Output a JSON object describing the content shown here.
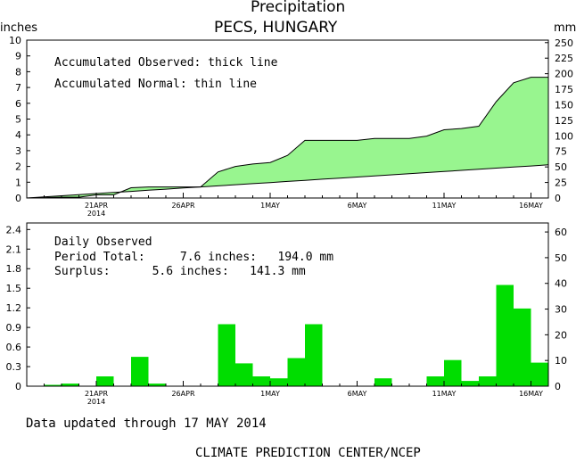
{
  "header": {
    "title": "Precipitation",
    "location": "PECS, HUNGARY",
    "left_unit": "inches",
    "right_unit": "mm"
  },
  "footer": {
    "updated": "Data updated through 17 MAY 2014",
    "credit": "CLIMATE PREDICTION CENTER/NCEP"
  },
  "chart_data": [
    {
      "type": "area",
      "annotations": [
        "Accumulated Observed: thick line",
        "Accumulated Normal: thin line"
      ],
      "x_ticks": [
        "21APR",
        "26APR",
        "1MAY",
        "6MAY",
        "11MAY",
        "16MAY"
      ],
      "x_tick_days": [
        4,
        9,
        14,
        19,
        24,
        29
      ],
      "year_label": "2014",
      "y_left_ticks": [
        "0",
        "1",
        "2",
        "3",
        "4",
        "5",
        "6",
        "7",
        "8",
        "9",
        "10"
      ],
      "y_right_ticks": [
        "0",
        "25",
        "50",
        "75",
        "100",
        "125",
        "150",
        "175",
        "200",
        "225",
        "250"
      ],
      "ylim_inches": [
        0,
        10
      ],
      "x_days": [
        0,
        1,
        2,
        3,
        4,
        5,
        6,
        7,
        8,
        9,
        10,
        11,
        12,
        13,
        14,
        15,
        16,
        17,
        18,
        19,
        20,
        21,
        22,
        23,
        24,
        25,
        26,
        27,
        28,
        29,
        30
      ],
      "series": [
        {
          "name": "Accumulated Observed",
          "values": [
            0.0,
            0.02,
            0.05,
            0.05,
            0.2,
            0.2,
            0.65,
            0.7,
            0.7,
            0.7,
            0.7,
            1.65,
            2.0,
            2.15,
            2.25,
            2.7,
            3.65,
            3.65,
            3.65,
            3.65,
            3.77,
            3.77,
            3.77,
            3.92,
            4.32,
            4.4,
            4.55,
            6.1,
            7.3,
            7.65,
            7.65
          ]
        },
        {
          "name": "Accumulated Normal",
          "values": [
            0.0,
            0.07,
            0.14,
            0.21,
            0.28,
            0.35,
            0.42,
            0.49,
            0.56,
            0.63,
            0.7,
            0.77,
            0.84,
            0.91,
            0.98,
            1.05,
            1.12,
            1.19,
            1.26,
            1.33,
            1.4,
            1.47,
            1.54,
            1.61,
            1.68,
            1.75,
            1.82,
            1.89,
            1.96,
            2.03,
            2.1
          ]
        }
      ]
    },
    {
      "type": "bar",
      "annotations": [
        "Daily Observed",
        "Period Total:     7.6 inches:   194.0 mm",
        "Surplus:      5.6 inches:   141.3 mm"
      ],
      "x_ticks": [
        "21APR",
        "26APR",
        "1MAY",
        "6MAY",
        "11MAY",
        "16MAY"
      ],
      "x_tick_days": [
        4,
        9,
        14,
        19,
        24,
        29
      ],
      "year_label": "2014",
      "y_left_ticks": [
        "0",
        "0.3",
        "0.6",
        "0.9",
        "1.2",
        "1.5",
        "1.8",
        "2.1",
        "2.4"
      ],
      "y_right_ticks": [
        "0",
        "10",
        "20",
        "30",
        "40",
        "50",
        "60"
      ],
      "ylim_inches": [
        0,
        2.5
      ],
      "x_days": [
        0,
        1,
        2,
        3,
        4,
        5,
        6,
        7,
        8,
        9,
        10,
        11,
        12,
        13,
        14,
        15,
        16,
        17,
        18,
        19,
        20,
        21,
        22,
        23,
        24,
        25,
        26,
        27,
        28,
        29
      ],
      "values": [
        0.0,
        0.02,
        0.04,
        0.0,
        0.15,
        0.0,
        0.45,
        0.04,
        0.0,
        0.0,
        0.0,
        0.95,
        0.35,
        0.15,
        0.12,
        0.43,
        0.95,
        0.0,
        0.0,
        0.0,
        0.12,
        0.0,
        0.0,
        0.15,
        0.4,
        0.08,
        0.15,
        1.55,
        1.19,
        0.36
      ]
    }
  ],
  "colors": {
    "observed_fill": "#98f58f",
    "bar_fill": "#00dd00",
    "line": "#000000"
  }
}
